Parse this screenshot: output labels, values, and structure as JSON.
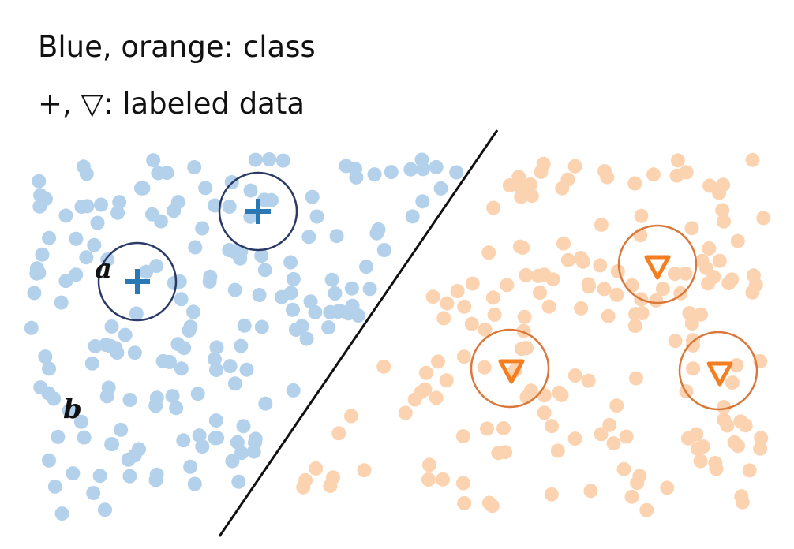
{
  "legend": {
    "line1": "Blue, orange: class",
    "line2": "+, ▽: labeled data"
  },
  "colors": {
    "blue_point": "#b3d1ea",
    "orange_point": "#fcd3b0",
    "blue_marker": "#2a78b4",
    "blue_circle": "#2b3a66",
    "orange_marker": "#f47e20",
    "orange_circle": "#d9783a",
    "boundary": "#111111"
  },
  "point_labels": [
    "a",
    "b"
  ],
  "labeled_data": {
    "blue_markers": [
      "+",
      "+"
    ],
    "orange_markers": [
      "▽",
      "▽",
      "▽"
    ]
  }
}
